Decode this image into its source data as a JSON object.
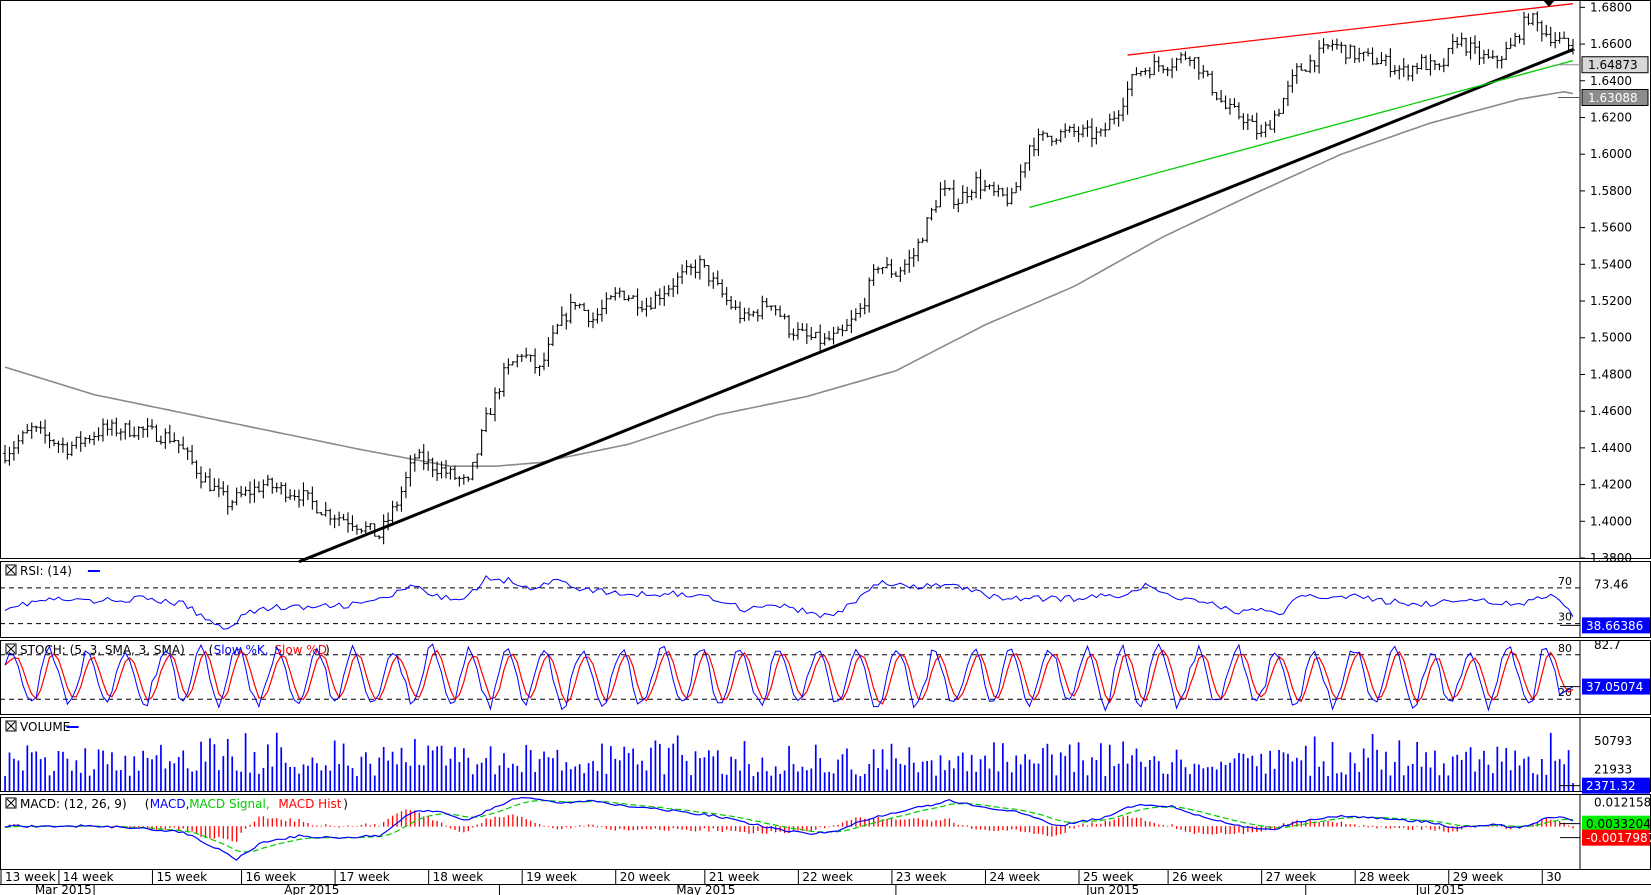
{
  "colors": {
    "price": "#000000",
    "ma": "#8a8a8a",
    "trend_main": "#000000",
    "trend_upper": "#ff0000",
    "trend_lower": "#00cc00",
    "blue": "#0000ff",
    "red": "#ff0000",
    "green": "#00cc00",
    "grid": "#000000"
  },
  "chart_data": [
    {
      "type": "line",
      "panel": "price",
      "series": [],
      "ylim": [
        1.38,
        1.684
      ],
      "y_ticks": [
        "1.6800",
        "1.6600",
        "1.6400",
        "1.6200",
        "1.6000",
        "1.5800",
        "1.5600",
        "1.5400",
        "1.5200",
        "1.5000",
        "1.4800",
        "1.4600",
        "1.4400",
        "1.4200",
        "1.4000",
        "1.3800"
      ],
      "close_anchors": [
        [
          0,
          1.437
        ],
        [
          6,
          1.45
        ],
        [
          14,
          1.44
        ],
        [
          22,
          1.45
        ],
        [
          30,
          1.45
        ],
        [
          38,
          1.445
        ],
        [
          44,
          1.425
        ],
        [
          50,
          1.41
        ],
        [
          58,
          1.42
        ],
        [
          66,
          1.415
        ],
        [
          72,
          1.405
        ],
        [
          78,
          1.4
        ],
        [
          84,
          1.392
        ],
        [
          88,
          1.41
        ],
        [
          92,
          1.435
        ],
        [
          98,
          1.428
        ],
        [
          104,
          1.42
        ],
        [
          108,
          1.455
        ],
        [
          112,
          1.48
        ],
        [
          116,
          1.492
        ],
        [
          120,
          1.482
        ],
        [
          124,
          1.505
        ],
        [
          128,
          1.52
        ],
        [
          132,
          1.51
        ],
        [
          138,
          1.525
        ],
        [
          144,
          1.518
        ],
        [
          150,
          1.53
        ],
        [
          156,
          1.54
        ],
        [
          162,
          1.52
        ],
        [
          166,
          1.51
        ],
        [
          172,
          1.52
        ],
        [
          176,
          1.505
        ],
        [
          180,
          1.5
        ],
        [
          184,
          1.498
        ],
        [
          188,
          1.502
        ],
        [
          192,
          1.515
        ],
        [
          196,
          1.54
        ],
        [
          200,
          1.535
        ],
        [
          204,
          1.545
        ],
        [
          210,
          1.58
        ],
        [
          214,
          1.575
        ],
        [
          218,
          1.585
        ],
        [
          222,
          1.578
        ],
        [
          226,
          1.575
        ],
        [
          230,
          1.605
        ],
        [
          234,
          1.61
        ],
        [
          240,
          1.612
        ],
        [
          246,
          1.61
        ],
        [
          250,
          1.625
        ],
        [
          254,
          1.645
        ],
        [
          258,
          1.648
        ],
        [
          262,
          1.65
        ],
        [
          266,
          1.655
        ],
        [
          270,
          1.64
        ],
        [
          274,
          1.625
        ],
        [
          278,
          1.62
        ],
        [
          282,
          1.61
        ],
        [
          286,
          1.625
        ],
        [
          290,
          1.645
        ],
        [
          294,
          1.652
        ],
        [
          298,
          1.66
        ],
        [
          302,
          1.655
        ],
        [
          306,
          1.652
        ],
        [
          310,
          1.65
        ],
        [
          314,
          1.645
        ],
        [
          318,
          1.65
        ],
        [
          322,
          1.645
        ],
        [
          326,
          1.663
        ],
        [
          330,
          1.655
        ],
        [
          334,
          1.65
        ],
        [
          338,
          1.658
        ],
        [
          342,
          1.675
        ],
        [
          346,
          1.666
        ],
        [
          350,
          1.66
        ],
        [
          352,
          1.658
        ]
      ],
      "ma_anchors": [
        [
          0,
          1.484
        ],
        [
          20,
          1.469
        ],
        [
          40,
          1.459
        ],
        [
          60,
          1.449
        ],
        [
          80,
          1.439
        ],
        [
          100,
          1.43
        ],
        [
          110,
          1.43
        ],
        [
          120,
          1.432
        ],
        [
          140,
          1.442
        ],
        [
          160,
          1.458
        ],
        [
          180,
          1.468
        ],
        [
          200,
          1.482
        ],
        [
          220,
          1.507
        ],
        [
          240,
          1.528
        ],
        [
          260,
          1.555
        ],
        [
          280,
          1.578
        ],
        [
          300,
          1.6
        ],
        [
          320,
          1.617
        ],
        [
          340,
          1.63
        ],
        [
          350,
          1.634
        ],
        [
          352,
          1.633
        ]
      ],
      "trendlines": [
        {
          "name": "support",
          "color": "#000000",
          "from": [
            66,
            1.378
          ],
          "to": [
            352,
            1.657
          ]
        },
        {
          "name": "resistance",
          "color": "#ff0000",
          "from": [
            252,
            1.654
          ],
          "to": [
            352,
            1.682
          ]
        },
        {
          "name": "channel-low",
          "color": "#00cc00",
          "from": [
            230,
            1.571
          ],
          "to": [
            352,
            1.651
          ]
        }
      ],
      "labels": [
        {
          "text": "1.64873",
          "value": 1.64873,
          "style": "light"
        },
        {
          "text": "1.63088",
          "value": 1.63088,
          "style": "dark"
        }
      ]
    },
    {
      "type": "line",
      "panel": "rsi",
      "title": "RSI: (14)",
      "series": [],
      "ylim": [
        15,
        100
      ],
      "levels": [
        {
          "text": "70",
          "value": 70
        },
        {
          "text": "30",
          "value": 30
        }
      ],
      "right_values": [
        {
          "text": "73.46",
          "style": "plain"
        },
        {
          "text": "38.66386",
          "style": "box"
        }
      ],
      "anchors": [
        [
          0,
          48
        ],
        [
          10,
          57
        ],
        [
          20,
          55
        ],
        [
          30,
          58
        ],
        [
          40,
          52
        ],
        [
          46,
          32
        ],
        [
          50,
          25
        ],
        [
          54,
          42
        ],
        [
          60,
          48
        ],
        [
          70,
          48
        ],
        [
          80,
          52
        ],
        [
          86,
          60
        ],
        [
          92,
          72
        ],
        [
          96,
          60
        ],
        [
          100,
          58
        ],
        [
          104,
          62
        ],
        [
          108,
          80
        ],
        [
          114,
          78
        ],
        [
          118,
          70
        ],
        [
          124,
          78
        ],
        [
          130,
          68
        ],
        [
          140,
          62
        ],
        [
          150,
          64
        ],
        [
          160,
          58
        ],
        [
          166,
          46
        ],
        [
          172,
          52
        ],
        [
          176,
          48
        ],
        [
          182,
          40
        ],
        [
          186,
          38
        ],
        [
          190,
          52
        ],
        [
          196,
          76
        ],
        [
          204,
          70
        ],
        [
          212,
          74
        ],
        [
          220,
          62
        ],
        [
          226,
          58
        ],
        [
          230,
          58
        ],
        [
          240,
          58
        ],
        [
          250,
          62
        ],
        [
          256,
          72
        ],
        [
          262,
          60
        ],
        [
          270,
          55
        ],
        [
          276,
          42
        ],
        [
          282,
          48
        ],
        [
          286,
          38
        ],
        [
          290,
          58
        ],
        [
          300,
          62
        ],
        [
          310,
          55
        ],
        [
          320,
          52
        ],
        [
          330,
          58
        ],
        [
          340,
          50
        ],
        [
          344,
          58
        ],
        [
          348,
          60
        ],
        [
          350,
          52
        ],
        [
          352,
          37
        ]
      ]
    },
    {
      "type": "line",
      "panel": "stoch",
      "title": "STOCH: (5, 3, SMA, 3, SMA)",
      "series": [
        {
          "name": "Slow %K",
          "color": "#0000ff"
        },
        {
          "name": "Slow %D",
          "color": "#ff0000"
        }
      ],
      "ylim": [
        0,
        100
      ],
      "levels": [
        {
          "text": "80",
          "value": 80
        },
        {
          "text": "20",
          "value": 20
        }
      ],
      "right_values": [
        {
          "text": "82.7",
          "style": "plain"
        },
        {
          "text": "37.05074",
          "style": "box"
        }
      ]
    },
    {
      "type": "bar",
      "panel": "volume",
      "title": "VOLUME",
      "series": [],
      "ylim": [
        0,
        75000
      ],
      "right_values": [
        {
          "text": "50793",
          "style": "plain"
        },
        {
          "text": "21933",
          "style": "plain"
        },
        {
          "text": "2371.32",
          "style": "box"
        }
      ],
      "range": [
        15000,
        60000
      ]
    },
    {
      "type": "line",
      "panel": "macd",
      "title": "MACD: (12, 26, 9)",
      "series": [
        {
          "name": "MACD",
          "color": "#0000ff"
        },
        {
          "name": "MACD Signal",
          "color": "#00cc00"
        },
        {
          "name": "MACD Hist",
          "color": "#ff0000"
        }
      ],
      "ylim": [
        -0.022,
        0.0165
      ],
      "right_values": [
        {
          "text": "0.0121584",
          "style": "plain"
        },
        {
          "text": "0.0033204",
          "style": "box-green"
        },
        {
          "text": "-0.0017987",
          "style": "box-red"
        }
      ],
      "anchors": [
        [
          0,
          0.0
        ],
        [
          10,
          0.0
        ],
        [
          20,
          0.0
        ],
        [
          30,
          -0.001
        ],
        [
          40,
          -0.003
        ],
        [
          48,
          -0.012
        ],
        [
          52,
          -0.017
        ],
        [
          58,
          -0.008
        ],
        [
          66,
          -0.005
        ],
        [
          74,
          -0.006
        ],
        [
          84,
          -0.005
        ],
        [
          92,
          0.008
        ],
        [
          98,
          0.007
        ],
        [
          104,
          0.003
        ],
        [
          110,
          0.01
        ],
        [
          116,
          0.015
        ],
        [
          124,
          0.012
        ],
        [
          132,
          0.013
        ],
        [
          140,
          0.01
        ],
        [
          150,
          0.008
        ],
        [
          160,
          0.005
        ],
        [
          170,
          0.0
        ],
        [
          180,
          -0.004
        ],
        [
          186,
          -0.003
        ],
        [
          194,
          0.004
        ],
        [
          202,
          0.008
        ],
        [
          212,
          0.013
        ],
        [
          222,
          0.009
        ],
        [
          230,
          0.006
        ],
        [
          236,
          0.0
        ],
        [
          246,
          0.004
        ],
        [
          254,
          0.011
        ],
        [
          262,
          0.01
        ],
        [
          270,
          0.004
        ],
        [
          278,
          0.0
        ],
        [
          284,
          -0.002
        ],
        [
          292,
          0.003
        ],
        [
          300,
          0.005
        ],
        [
          310,
          0.004
        ],
        [
          320,
          0.002
        ],
        [
          326,
          -0.001
        ],
        [
          334,
          0.001
        ],
        [
          340,
          -0.001
        ],
        [
          346,
          0.004
        ],
        [
          350,
          0.005
        ],
        [
          352,
          0.003
        ]
      ]
    },
    {
      "type": "table",
      "panel": "x-axis",
      "week_labels": [
        {
          "text": "13 week",
          "x": 0
        },
        {
          "text": "14 week",
          "x": 13
        },
        {
          "text": "15 week",
          "x": 34
        },
        {
          "text": "16 week",
          "x": 54
        },
        {
          "text": "17 week",
          "x": 75
        },
        {
          "text": "18 week",
          "x": 96
        },
        {
          "text": "19 week",
          "x": 117
        },
        {
          "text": "20 week",
          "x": 138
        },
        {
          "text": "21 week",
          "x": 158
        },
        {
          "text": "22 week",
          "x": 179
        },
        {
          "text": "23 week",
          "x": 200
        },
        {
          "text": "24 week",
          "x": 221
        },
        {
          "text": "25 week",
          "x": 242
        },
        {
          "text": "26 week",
          "x": 262
        },
        {
          "text": "27 week",
          "x": 283
        },
        {
          "text": "28 week",
          "x": 304
        },
        {
          "text": "29 week",
          "x": 325
        },
        {
          "text": "30",
          "x": 346
        }
      ],
      "month_labels": [
        {
          "text": "Mar 2015",
          "x": 4
        },
        {
          "text": "Apr 2015",
          "x": 60
        },
        {
          "text": "May 2015",
          "x": 148
        },
        {
          "text": "Jun 2015",
          "x": 240
        },
        {
          "text": "Jul 2015",
          "x": 314
        }
      ],
      "month_separators": [
        20,
        111,
        200,
        292
      ]
    }
  ]
}
